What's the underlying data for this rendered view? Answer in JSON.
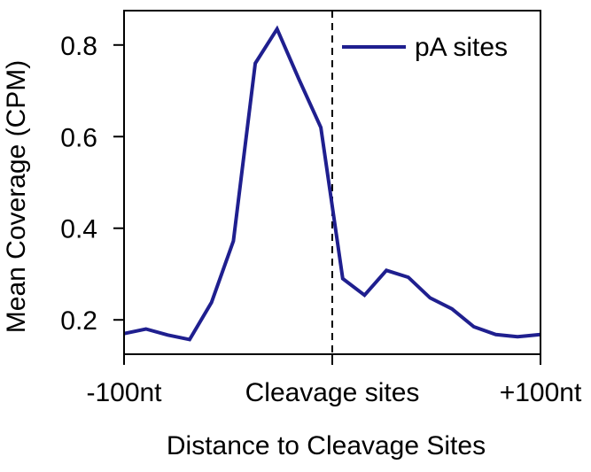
{
  "chart_data": {
    "type": "line",
    "title": "",
    "xlabel": "Distance to Cleavage Sites",
    "ylabel": "Mean Coverage (CPM)",
    "xlim": [
      -100,
      100
    ],
    "ylim": [
      0.125,
      0.875
    ],
    "x_ticks": [
      {
        "value": -100,
        "label": "-100nt"
      },
      {
        "value": 0,
        "label": "Cleavage sites"
      },
      {
        "value": 100,
        "label": "+100nt"
      }
    ],
    "y_ticks": [
      {
        "value": 0.2,
        "label": "0.2"
      },
      {
        "value": 0.4,
        "label": "0.4"
      },
      {
        "value": 0.6,
        "label": "0.6"
      },
      {
        "value": 0.8,
        "label": "0.8"
      }
    ],
    "reference_line": {
      "x": 0,
      "style": "dashed"
    },
    "legend": {
      "position": "top-right"
    },
    "series": [
      {
        "name": "pA sites",
        "color": "#1f1f8f",
        "x": [
          -100,
          -89.5,
          -79,
          -68.5,
          -58,
          -47.5,
          -37,
          -26.5,
          -16,
          -5.5,
          5,
          15.5,
          26,
          36.5,
          47,
          57.5,
          68,
          78.5,
          89,
          100
        ],
        "y": [
          0.17,
          0.18,
          0.167,
          0.157,
          0.238,
          0.372,
          0.76,
          0.835,
          0.725,
          0.62,
          0.29,
          0.254,
          0.308,
          0.293,
          0.248,
          0.224,
          0.185,
          0.168,
          0.163,
          0.168
        ]
      }
    ]
  }
}
